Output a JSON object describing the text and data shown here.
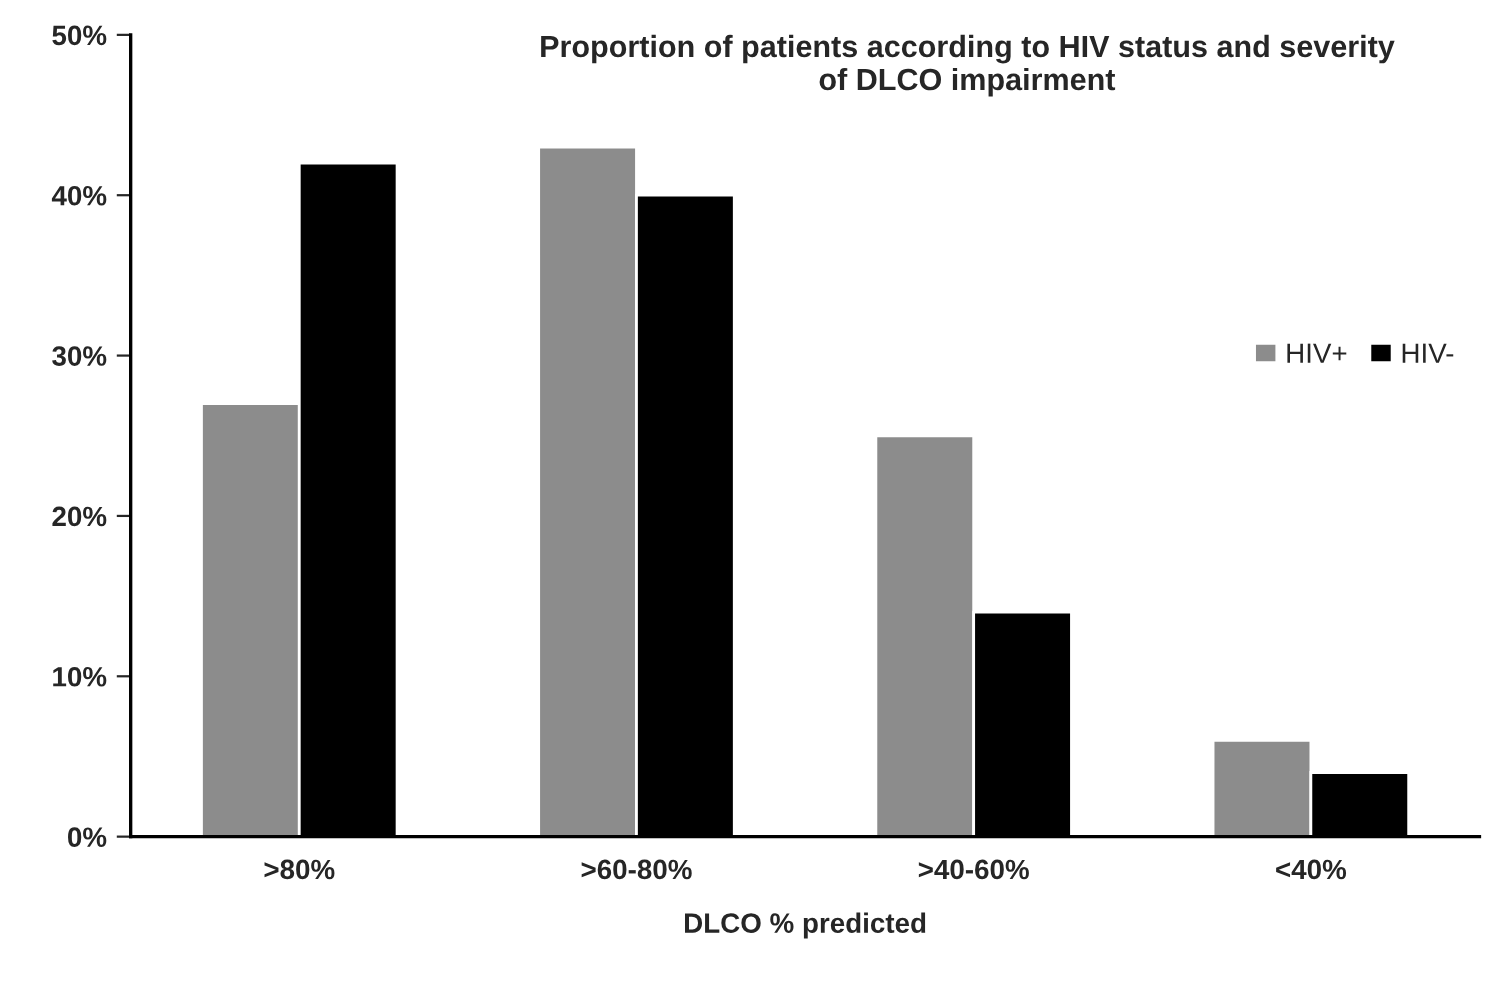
{
  "chart_data": {
    "type": "bar",
    "title": "Proportion of patients according to HIV status and severity\nof DLCO impairment",
    "xlabel": "DLCO % predicted",
    "categories": [
      ">80%",
      ">60-80%",
      ">40-60%",
      "<40%"
    ],
    "series": [
      {
        "name": "HIV+",
        "color": "#8c8c8c",
        "values": [
          27,
          43,
          25,
          6
        ]
      },
      {
        "name": "HIV-",
        "color": "#000000",
        "values": [
          42,
          40,
          14,
          4
        ]
      }
    ],
    "ylim": [
      0,
      50
    ],
    "yticks": [
      {
        "value": 0,
        "label": "0%"
      },
      {
        "value": 10,
        "label": "10%"
      },
      {
        "value": 20,
        "label": "20%"
      },
      {
        "value": 30,
        "label": "30%"
      },
      {
        "value": 40,
        "label": "40%"
      },
      {
        "value": 50,
        "label": "50%"
      }
    ],
    "grid": false,
    "legend": "right"
  }
}
